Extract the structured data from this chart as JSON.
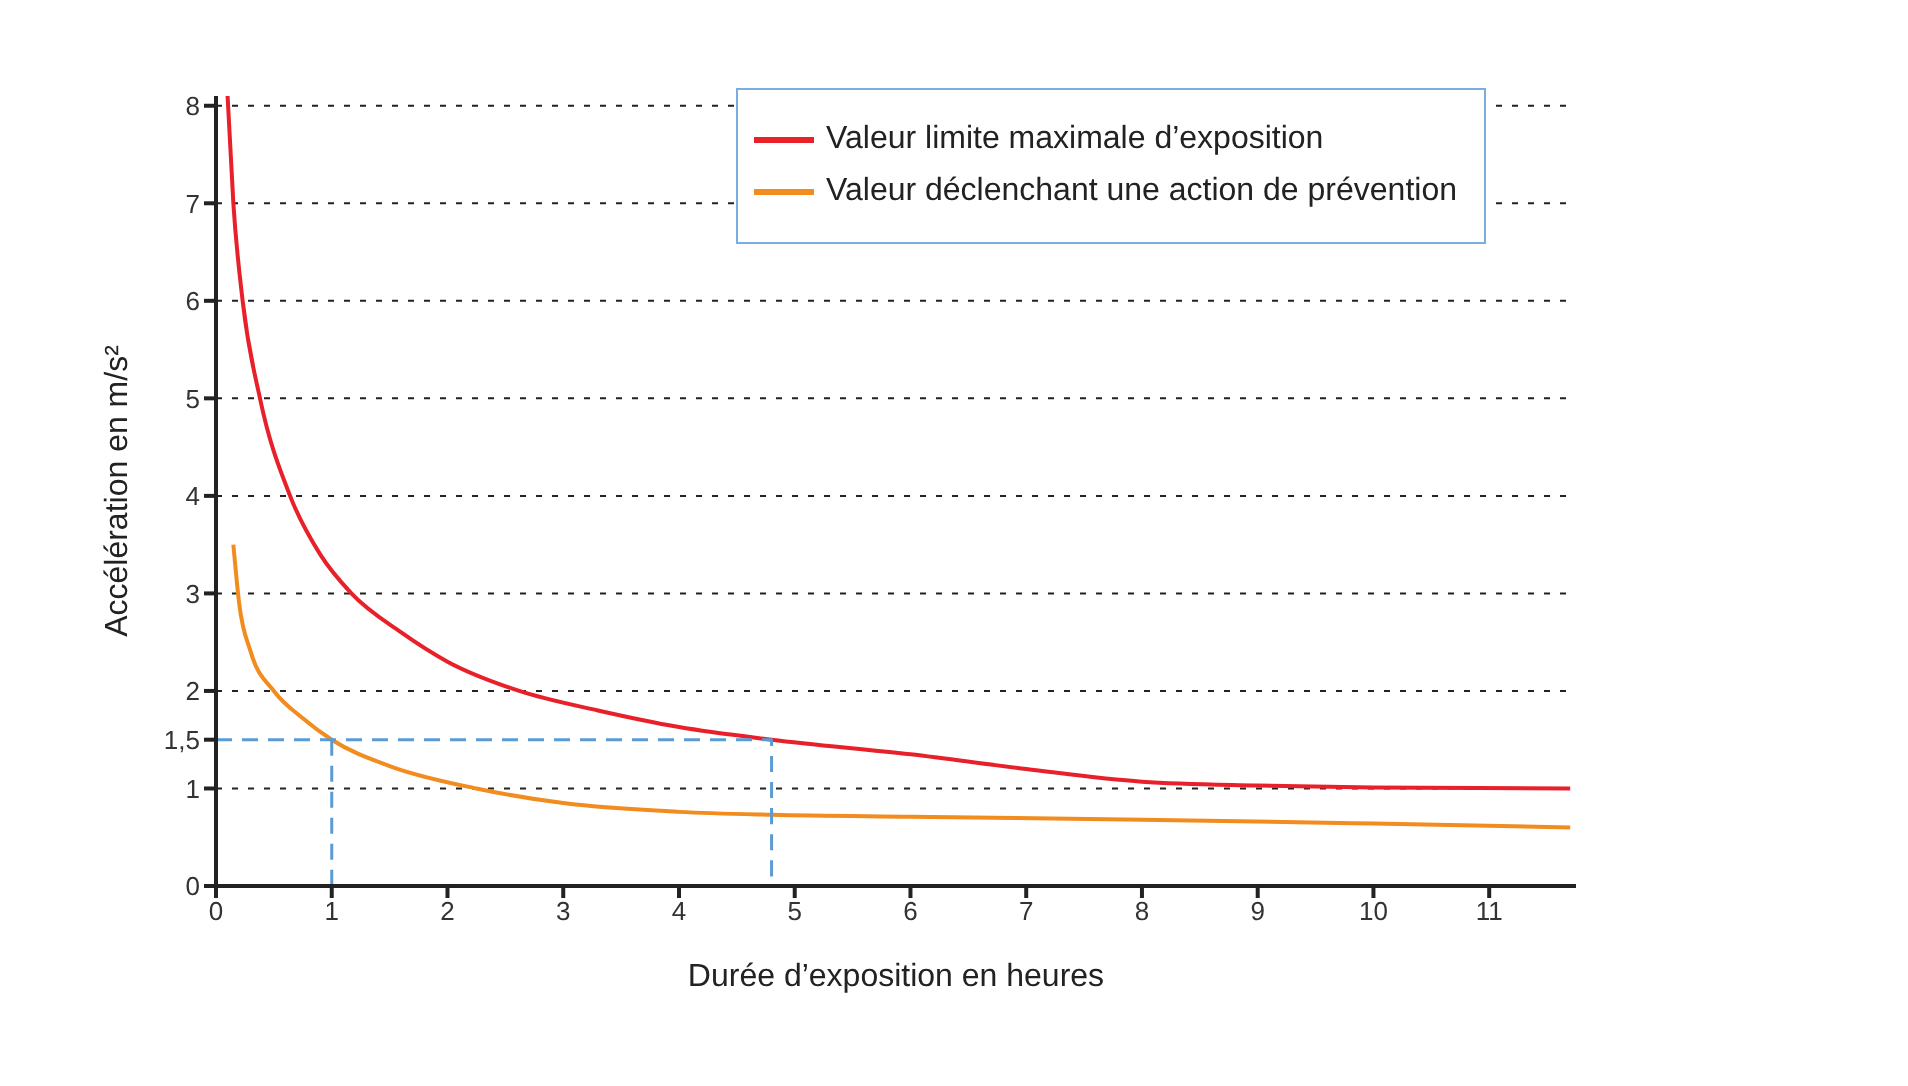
{
  "chart_data": {
    "type": "line",
    "xlabel": "Durée d’exposition en heures",
    "ylabel": "Accélération en m/s²",
    "xlim": [
      0,
      11.75
    ],
    "xticks": [
      0,
      1,
      2,
      3,
      4,
      5,
      6,
      7,
      8,
      9,
      10,
      11
    ],
    "ylim": [
      0,
      8.1
    ],
    "yticks": [
      0,
      1,
      {
        "value": 1.5,
        "label": "1,5"
      },
      2,
      3,
      4,
      5,
      6,
      7,
      8
    ],
    "grid": "y",
    "legend": "top right",
    "marker": "none",
    "line_style": "solid",
    "series": [
      {
        "name": "Valeur limite maximale d’exposition",
        "color": "#e8202a",
        "x": [
          0.1,
          0.15,
          0.23,
          0.38,
          0.64,
          0.9,
          1.17,
          1.6,
          2.0,
          2.62,
          3.3,
          4.0,
          4.8,
          6.0,
          7.0,
          8.0,
          9.0,
          10.0,
          11.7
        ],
        "values": [
          8.1,
          7.0,
          6.0,
          5.0,
          4.0,
          3.4,
          3.0,
          2.6,
          2.3,
          2.0,
          1.8,
          1.63,
          1.5,
          1.35,
          1.2,
          1.07,
          1.03,
          1.01,
          1.0
        ]
      },
      {
        "name": "Valeur déclenchant une action de prévention",
        "color": "#f28c1e",
        "x": [
          0.15,
          0.2,
          0.3,
          0.5,
          0.75,
          1.0,
          1.5,
          2.25,
          3.0,
          4.0,
          4.8,
          6.0,
          8.0,
          10.0,
          11.7
        ],
        "values": [
          3.5,
          2.9,
          2.4,
          2.0,
          1.72,
          1.5,
          1.23,
          1.0,
          0.85,
          0.76,
          0.73,
          0.71,
          0.68,
          0.64,
          0.6
        ]
      },
      {
        "type": "line",
        "color": "#5b9bd5",
        "line_style": "dashed",
        "x": [
          0,
          4.8,
          4.8
        ],
        "values": [
          1.5,
          1.5,
          0
        ]
      },
      {
        "type": "line",
        "color": "#5b9bd5",
        "line_style": "dashed",
        "x": [
          1,
          1
        ],
        "values": [
          1.5,
          0
        ]
      }
    ]
  }
}
